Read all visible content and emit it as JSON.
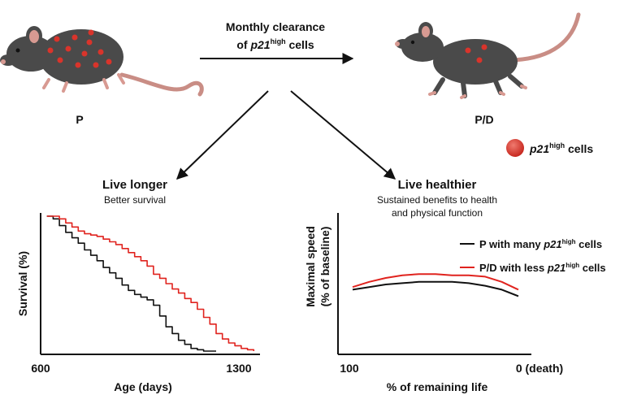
{
  "header": {
    "clearance_line1": "Monthly clearance",
    "clearance_of": "of ",
    "clearance_p21": "p21",
    "clearance_sup": "high",
    "clearance_cells": " cells"
  },
  "mice": {
    "left_label": "P",
    "right_label": "P/D"
  },
  "legend_cells": {
    "p21": "p21",
    "sup": "high",
    "cells": " cells",
    "color": "#d9342b"
  },
  "left_panel": {
    "title": "Live longer",
    "subtitle": "Better survival"
  },
  "right_panel": {
    "title": "Live healthier",
    "subtitle_line1": "Sustained benefits to health",
    "subtitle_line2": "and physical function"
  },
  "chart_data": [
    {
      "type": "line",
      "xlabel": "Age (days)",
      "ylabel": "Survival (%)",
      "x_ticks": [
        "600",
        "1300"
      ],
      "xlim": [
        600,
        1300
      ],
      "ylim": [
        0,
        100
      ],
      "series": [
        {
          "color": "#111111",
          "x": [
            620,
            640,
            660,
            680,
            700,
            720,
            740,
            760,
            780,
            800,
            820,
            840,
            860,
            880,
            900,
            920,
            940,
            960,
            980,
            1000,
            1020,
            1040,
            1060,
            1080,
            1100,
            1120,
            1140,
            1160
          ],
          "values": [
            100,
            98,
            93,
            88,
            84,
            80,
            75,
            71,
            67,
            62,
            58,
            54,
            49,
            45,
            42,
            40,
            38,
            34,
            26,
            18,
            13,
            8,
            5,
            2,
            1,
            0,
            0,
            0
          ]
        },
        {
          "color": "#e0231e",
          "x": [
            620,
            640,
            660,
            680,
            700,
            720,
            740,
            760,
            780,
            800,
            820,
            840,
            860,
            880,
            900,
            920,
            940,
            960,
            980,
            1000,
            1020,
            1040,
            1060,
            1080,
            1100,
            1120,
            1140,
            1160,
            1180,
            1200,
            1220,
            1240,
            1260,
            1280
          ],
          "values": [
            100,
            100,
            98,
            95,
            92,
            89,
            87,
            86,
            85,
            83,
            81,
            79,
            76,
            73,
            70,
            67,
            63,
            57,
            54,
            50,
            46,
            43,
            39,
            36,
            31,
            25,
            20,
            13,
            9,
            6,
            4,
            2,
            1,
            0
          ]
        }
      ]
    },
    {
      "type": "line",
      "xlabel": "% of remaining life",
      "ylabel": "Maximal speed (% of baseline)",
      "ylabel_line1": "Maximal speed",
      "ylabel_line2": "(% of baseline)",
      "x_ticks": [
        "100",
        "0 (death)"
      ],
      "xlim": [
        100,
        0
      ],
      "ylim": [
        0,
        100
      ],
      "series": [
        {
          "name": "P with many p21high cells",
          "label_p": "P with many ",
          "label_p21": "p21",
          "label_sup": "high",
          "label_cells": " cells",
          "color": "#111111",
          "x": [
            100,
            90,
            80,
            70,
            60,
            50,
            40,
            30,
            20,
            10,
            0
          ],
          "values": [
            46,
            48,
            50,
            51,
            52,
            52,
            52,
            51,
            49,
            46,
            41
          ]
        },
        {
          "name": "P/D with less p21high cells",
          "label_p": "P/D with less ",
          "label_p21": "p21",
          "label_sup": "high",
          "label_cells": " cells",
          "color": "#e0231e",
          "x": [
            100,
            90,
            80,
            70,
            60,
            50,
            40,
            30,
            20,
            10,
            0
          ],
          "values": [
            48,
            52,
            55,
            57,
            58,
            58,
            57,
            57,
            56,
            52,
            46
          ]
        }
      ]
    }
  ]
}
